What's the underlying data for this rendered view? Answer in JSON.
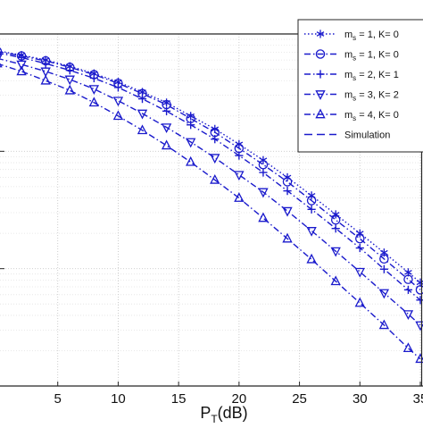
{
  "chart_data": {
    "type": "line",
    "xlabel": "P",
    "xlabel_sub": "T",
    "xlabel_unit": "(dB)",
    "x_ticks": [
      5,
      10,
      15,
      20,
      25,
      30,
      35
    ],
    "x_tick_labels": [
      "5",
      "10",
      "15",
      "20",
      "25",
      "30",
      "35"
    ],
    "xlim": [
      0,
      35
    ],
    "y_scale": "log",
    "ylim": [
      0.001,
      1
    ],
    "grid": true,
    "minor_grid": true,
    "legend_position": "top-right",
    "series": [
      {
        "name": "m",
        "name_sub": "s",
        "name_rest": " = 1, K= 0",
        "marker": "asterisk",
        "line": "dotted",
        "x": [
          0,
          2,
          4,
          6,
          8,
          10,
          12,
          14,
          16,
          18,
          20,
          22,
          24,
          26,
          28,
          30,
          32,
          34,
          35
        ],
        "y": [
          0.72,
          0.66,
          0.6,
          0.53,
          0.46,
          0.39,
          0.32,
          0.26,
          0.2,
          0.155,
          0.115,
          0.084,
          0.06,
          0.042,
          0.029,
          0.02,
          0.0137,
          0.0093,
          0.0076
        ]
      },
      {
        "name": "m",
        "name_sub": "s",
        "name_rest": " = 1, K= 0",
        "marker": "circle",
        "line": "dashdot",
        "x": [
          0,
          2,
          4,
          6,
          8,
          10,
          12,
          14,
          16,
          18,
          20,
          22,
          24,
          26,
          28,
          30,
          32,
          34,
          35
        ],
        "y": [
          0.71,
          0.65,
          0.59,
          0.52,
          0.45,
          0.38,
          0.31,
          0.25,
          0.19,
          0.145,
          0.106,
          0.077,
          0.055,
          0.038,
          0.026,
          0.018,
          0.0121,
          0.0081,
          0.0066
        ]
      },
      {
        "name": "m",
        "name_sub": "s",
        "name_rest": " = 2, K= 1",
        "marker": "plus",
        "line": "dashdot",
        "x": [
          0,
          2,
          4,
          6,
          8,
          10,
          12,
          14,
          16,
          18,
          20,
          22,
          24,
          26,
          28,
          30,
          32,
          34,
          35
        ],
        "y": [
          0.69,
          0.63,
          0.56,
          0.49,
          0.42,
          0.35,
          0.28,
          0.22,
          0.168,
          0.127,
          0.092,
          0.066,
          0.046,
          0.032,
          0.022,
          0.015,
          0.0099,
          0.0066,
          0.0054
        ]
      },
      {
        "name": "m",
        "name_sub": "s",
        "name_rest": " = 3, K= 2",
        "marker": "triangle-down",
        "line": "dashdot",
        "x": [
          0,
          2,
          4,
          6,
          8,
          10,
          12,
          14,
          16,
          18,
          20,
          22,
          24,
          26,
          28,
          30,
          32,
          34,
          35
        ],
        "y": [
          0.62,
          0.55,
          0.48,
          0.41,
          0.34,
          0.27,
          0.21,
          0.16,
          0.12,
          0.088,
          0.063,
          0.045,
          0.031,
          0.021,
          0.0141,
          0.0094,
          0.0062,
          0.0041,
          0.0033
        ]
      },
      {
        "name": "m",
        "name_sub": "s",
        "name_rest": " = 4, K= 0",
        "marker": "triangle-up",
        "line": "dashdot",
        "x": [
          0,
          2,
          4,
          6,
          8,
          10,
          12,
          14,
          16,
          18,
          20,
          22,
          24,
          26,
          28,
          30,
          32,
          34,
          35
        ],
        "y": [
          0.56,
          0.48,
          0.4,
          0.33,
          0.26,
          0.2,
          0.151,
          0.112,
          0.081,
          0.057,
          0.04,
          0.027,
          0.018,
          0.012,
          0.0078,
          0.0051,
          0.0033,
          0.0021,
          0.0017
        ]
      },
      {
        "name": "Simulation",
        "marker": "none",
        "line": "dashed",
        "x": [],
        "y": []
      }
    ],
    "colors": {
      "series": "#1a1acc",
      "axis": "#262626",
      "grid_major": "#c8c8c8",
      "grid_minor": "#e2e2e2",
      "background": "#ffffff"
    }
  }
}
